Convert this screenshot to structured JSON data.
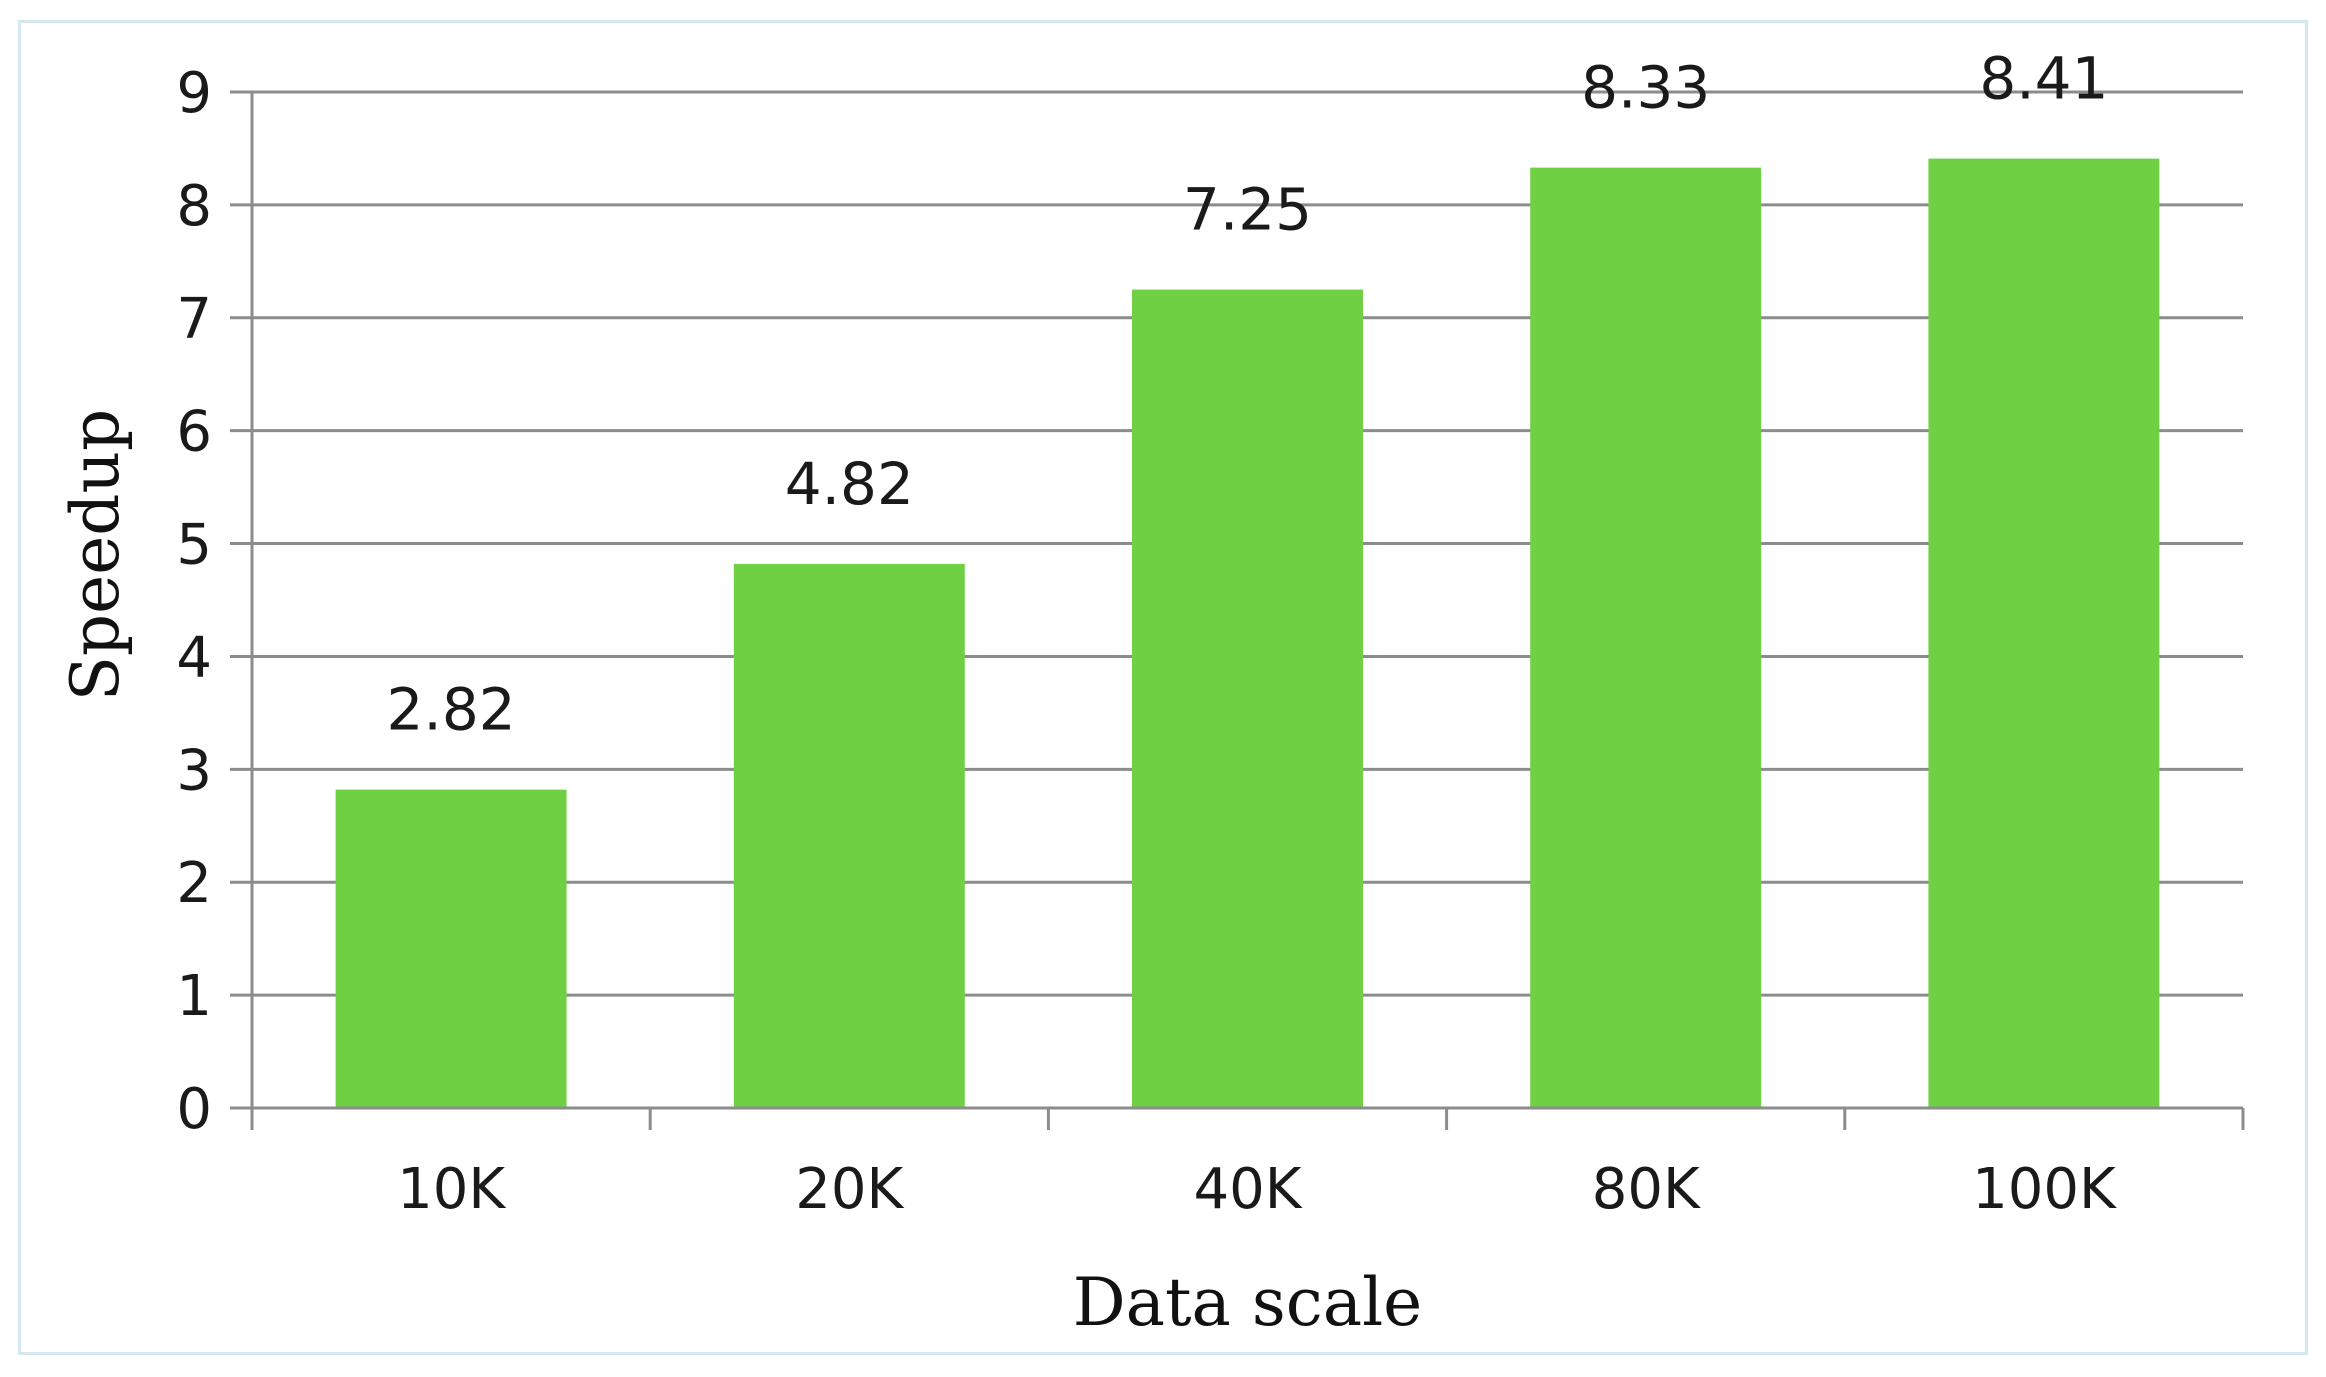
{
  "chart_data": {
    "type": "bar",
    "categories": [
      "10K",
      "20K",
      "40K",
      "80K",
      "100K"
    ],
    "values": [
      2.82,
      4.82,
      7.25,
      8.33,
      8.41
    ],
    "data_labels": [
      "2.82",
      "4.82",
      "7.25",
      "8.33",
      "8.41"
    ],
    "yticks": [
      "0",
      "1",
      "2",
      "3",
      "4",
      "5",
      "6",
      "7",
      "8",
      "9"
    ],
    "xlabel": "Data scale",
    "ylabel": "Speedup",
    "ylim": [
      0,
      9
    ],
    "grid": true,
    "legend": "none",
    "bar_color": "#70d044"
  }
}
